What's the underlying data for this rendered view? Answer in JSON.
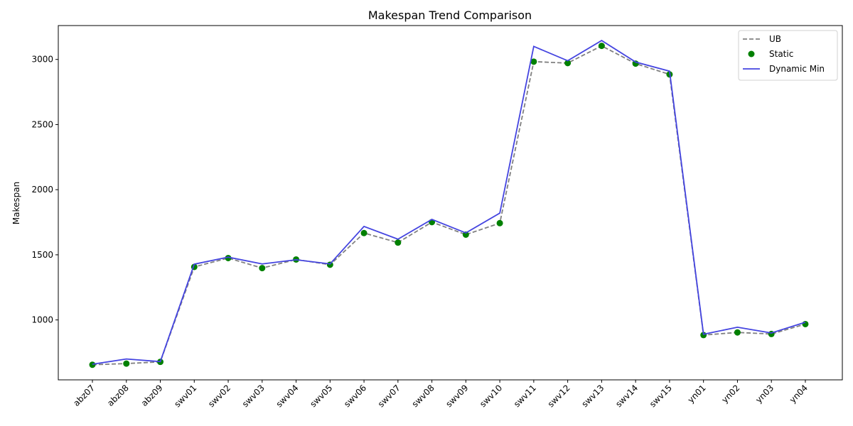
{
  "chart_data": {
    "type": "line",
    "title": "Makespan Trend Comparison",
    "xlabel": "",
    "ylabel": "Makespan",
    "ylim": [
      540,
      3260
    ],
    "yticks": [
      1000,
      1500,
      2000,
      2500,
      3000
    ],
    "grid": false,
    "legend_position": "top-right",
    "categories": [
      "abz07",
      "abz08",
      "abz09",
      "swv01",
      "swv02",
      "swv03",
      "swv04",
      "swv05",
      "swv06",
      "swv07",
      "swv08",
      "swv09",
      "swv10",
      "swv11",
      "swv12",
      "swv13",
      "swv14",
      "swv15",
      "yn01",
      "yn02",
      "yn03",
      "yn04"
    ],
    "series": [
      {
        "name": "UB",
        "style": "dashed-line",
        "color": "#808080",
        "values": [
          656,
          665,
          678,
          1407,
          1475,
          1398,
          1464,
          1424,
          1667,
          1594,
          1751,
          1655,
          1743,
          2983,
          2972,
          3104,
          2968,
          2885,
          884,
          904,
          892,
          968
        ]
      },
      {
        "name": "Static",
        "style": "scatter",
        "color": "#008000",
        "values": [
          656,
          665,
          678,
          1407,
          1475,
          1398,
          1464,
          1424,
          1667,
          1594,
          1751,
          1655,
          1743,
          2983,
          2972,
          3104,
          2968,
          2885,
          884,
          904,
          892,
          968
        ]
      },
      {
        "name": "Dynamic Min",
        "style": "solid-line",
        "color": "#4444e0",
        "values": [
          660,
          700,
          680,
          1428,
          1482,
          1430,
          1462,
          1430,
          1718,
          1620,
          1772,
          1668,
          1820,
          3100,
          2990,
          3145,
          2980,
          2910,
          890,
          944,
          900,
          982
        ]
      }
    ]
  }
}
